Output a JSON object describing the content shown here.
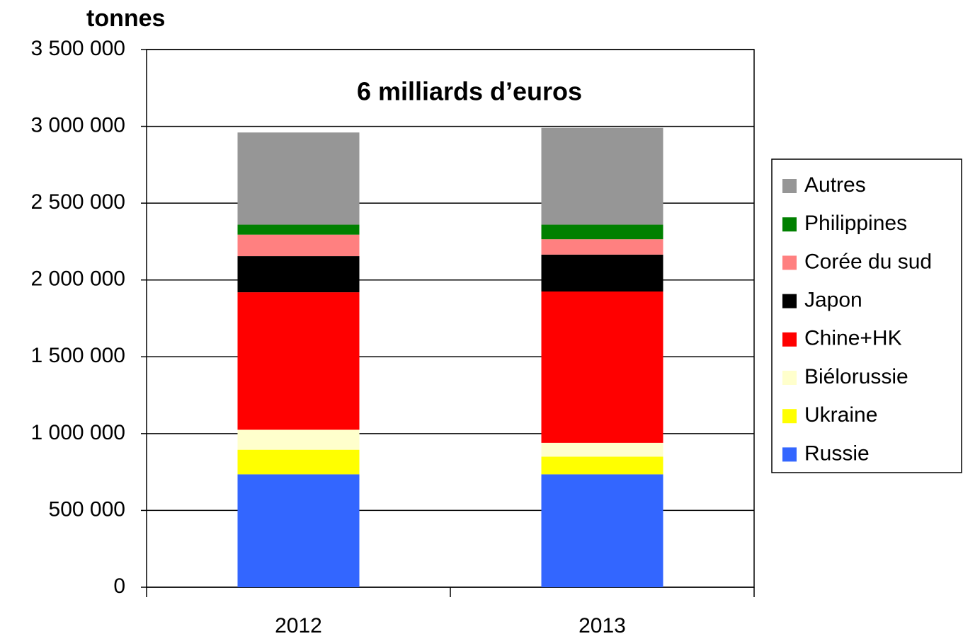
{
  "chart_data": {
    "type": "stacked-bar",
    "y_axis_label": "tonnes",
    "annotation": "6 milliards d’euros",
    "categories": [
      "2012",
      "2013"
    ],
    "series": [
      {
        "name": "Russie",
        "color": "#3366ff",
        "values": [
          735000,
          735000
        ]
      },
      {
        "name": "Ukraine",
        "color": "#ffff00",
        "values": [
          160000,
          115000
        ]
      },
      {
        "name": "Biélorussie",
        "color": "#ffffcc",
        "values": [
          130000,
          90000
        ]
      },
      {
        "name": "Chine+HK",
        "color": "#ff0000",
        "values": [
          895000,
          985000
        ]
      },
      {
        "name": "Japon",
        "color": "#000000",
        "values": [
          235000,
          240000
        ]
      },
      {
        "name": "Corée du sud",
        "color": "#ff8080",
        "values": [
          140000,
          100000
        ]
      },
      {
        "name": "Philippines",
        "color": "#008000",
        "values": [
          65000,
          95000
        ]
      },
      {
        "name": "Autres",
        "color": "#969696",
        "values": [
          600000,
          630000
        ]
      }
    ],
    "ylim": [
      0,
      3500000
    ],
    "yticks": [
      0,
      {
        "value": 500000,
        "label": "500 000"
      },
      {
        "value": 1000000,
        "label": "1 000 000"
      },
      {
        "value": 1500000,
        "label": "1 500 000"
      },
      {
        "value": 2000000,
        "label": "2 000 000"
      },
      {
        "value": 2500000,
        "label": "2 500 000"
      },
      {
        "value": 3000000,
        "label": "3 000 000"
      },
      {
        "value": 3500000,
        "label": "3 500 000"
      }
    ],
    "grid": true,
    "legend": "right"
  }
}
